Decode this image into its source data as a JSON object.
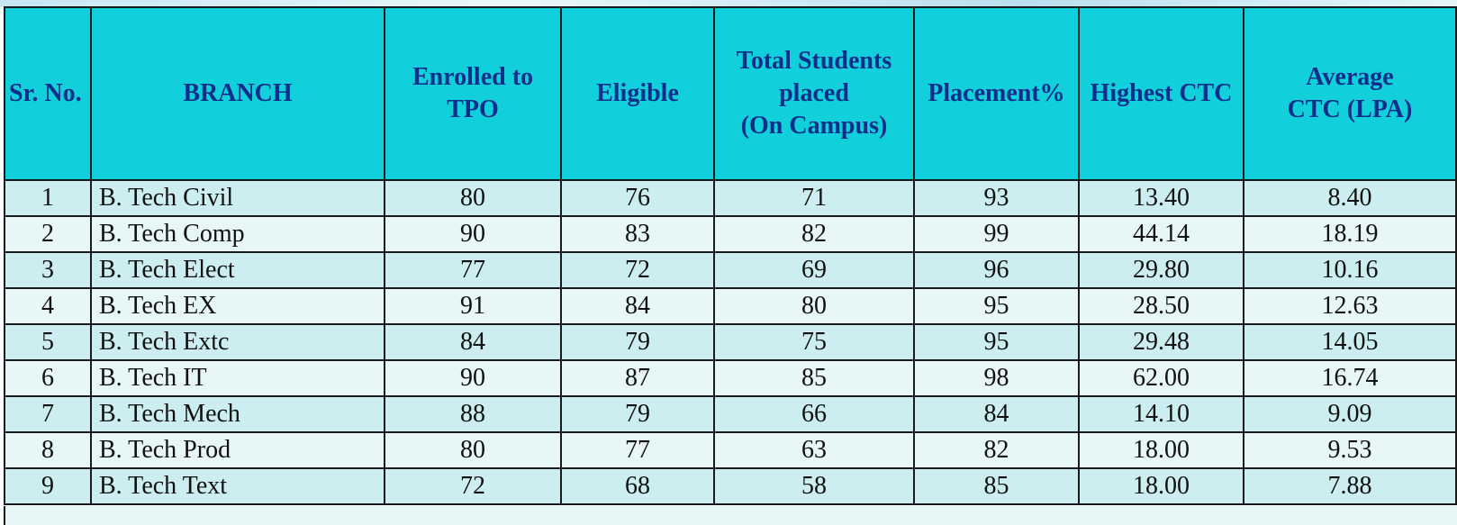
{
  "table": {
    "headers": [
      "Sr. No.",
      "BRANCH",
      "Enrolled to TPO",
      "Eligible",
      "Total Students placed (On Campus)",
      "Placement%",
      "Highest CTC",
      "Average CTC (LPA)"
    ],
    "header_lines": [
      [
        "Sr. No."
      ],
      [
        "BRANCH"
      ],
      [
        "Enrolled to",
        "TPO"
      ],
      [
        "Eligible"
      ],
      [
        "Total Students",
        "placed",
        "(On Campus)"
      ],
      [
        "Placement%"
      ],
      [
        "Highest CTC"
      ],
      [
        "Average",
        "CTC (LPA)"
      ]
    ],
    "rows": [
      [
        "1",
        "B. Tech Civil",
        "80",
        "76",
        "71",
        "93",
        "13.40",
        "8.40"
      ],
      [
        "2",
        "B. Tech Comp",
        "90",
        "83",
        "82",
        "99",
        "44.14",
        "18.19"
      ],
      [
        "3",
        "B. Tech Elect",
        "77",
        "72",
        "69",
        "96",
        "29.80",
        "10.16"
      ],
      [
        "4",
        "B. Tech EX",
        "91",
        "84",
        "80",
        "95",
        "28.50",
        "12.63"
      ],
      [
        "5",
        "B. Tech Extc",
        "84",
        "79",
        "75",
        "95",
        "29.48",
        "14.05"
      ],
      [
        "6",
        "B. Tech IT",
        "90",
        "87",
        "85",
        "98",
        "62.00",
        "16.74"
      ],
      [
        "7",
        "B. Tech Mech",
        "88",
        "79",
        "66",
        "84",
        "14.10",
        "9.09"
      ],
      [
        "8",
        "B. Tech Prod",
        "80",
        "77",
        "63",
        "82",
        "18.00",
        "9.53"
      ],
      [
        "9",
        "B. Tech Text",
        "72",
        "68",
        "58",
        "85",
        "18.00",
        "7.88"
      ]
    ]
  },
  "colors": {
    "header_background": "#11d0db",
    "header_text": "#0d2f8a",
    "row_odd": "#cdeef0",
    "row_even": "#e7f6f7",
    "border": "#1a1a1a"
  }
}
